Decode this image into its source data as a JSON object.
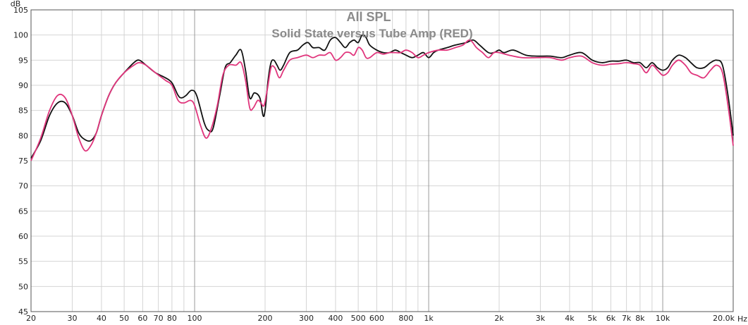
{
  "chart_data": {
    "type": "line",
    "title": "All SPL",
    "subtitle": "Solid State versus Tube Amp (RED)",
    "ylabel": "dB",
    "xunit": "Hz",
    "xscale": "log",
    "xlim": [
      20,
      20000
    ],
    "ylim": [
      45,
      105
    ],
    "grid": true,
    "yticks": [
      {
        "value": 45,
        "label": "45"
      },
      {
        "value": 50,
        "label": "50"
      },
      {
        "value": 55,
        "label": "55"
      },
      {
        "value": 60,
        "label": "60"
      },
      {
        "value": 65,
        "label": "65"
      },
      {
        "value": 70,
        "label": "70"
      },
      {
        "value": 75,
        "label": "75"
      },
      {
        "value": 80,
        "label": "80"
      },
      {
        "value": 85,
        "label": "85"
      },
      {
        "value": 90,
        "label": "90"
      },
      {
        "value": 95,
        "label": "95"
      },
      {
        "value": 100,
        "label": "100"
      },
      {
        "value": 105,
        "label": "105"
      }
    ],
    "xticks": [
      {
        "value": 20,
        "label": "20"
      },
      {
        "value": 30,
        "label": "30"
      },
      {
        "value": 40,
        "label": "40"
      },
      {
        "value": 50,
        "label": "50"
      },
      {
        "value": 60,
        "label": "60"
      },
      {
        "value": 70,
        "label": "70"
      },
      {
        "value": 80,
        "label": "80"
      },
      {
        "value": 90,
        "label": ""
      },
      {
        "value": 100,
        "label": "100"
      },
      {
        "value": 200,
        "label": "200"
      },
      {
        "value": 300,
        "label": "300"
      },
      {
        "value": 400,
        "label": "400"
      },
      {
        "value": 500,
        "label": "500"
      },
      {
        "value": 600,
        "label": "600"
      },
      {
        "value": 700,
        "label": ""
      },
      {
        "value": 800,
        "label": "800"
      },
      {
        "value": 900,
        "label": ""
      },
      {
        "value": 1000,
        "label": "1k"
      },
      {
        "value": 2000,
        "label": "2k"
      },
      {
        "value": 3000,
        "label": "3k"
      },
      {
        "value": 4000,
        "label": "4k"
      },
      {
        "value": 5000,
        "label": "5k"
      },
      {
        "value": 6000,
        "label": "6k"
      },
      {
        "value": 7000,
        "label": "7k"
      },
      {
        "value": 8000,
        "label": "8k"
      },
      {
        "value": 9000,
        "label": ""
      },
      {
        "value": 10000,
        "label": "10k"
      },
      {
        "value": 20000,
        "label": "20.0k"
      }
    ],
    "series": [
      {
        "color": "#111111",
        "points": [
          [
            20,
            75.5
          ],
          [
            22,
            79
          ],
          [
            24,
            84
          ],
          [
            26,
            86.5
          ],
          [
            28,
            86.5
          ],
          [
            30,
            84
          ],
          [
            32,
            80.5
          ],
          [
            34,
            79.2
          ],
          [
            36,
            79
          ],
          [
            38,
            80.5
          ],
          [
            40,
            84
          ],
          [
            43,
            88
          ],
          [
            46,
            90.5
          ],
          [
            50,
            92.5
          ],
          [
            55,
            94.5
          ],
          [
            58,
            95
          ],
          [
            62,
            94
          ],
          [
            68,
            92.5
          ],
          [
            75,
            91.5
          ],
          [
            80,
            90.5
          ],
          [
            85,
            88
          ],
          [
            88,
            87.5
          ],
          [
            92,
            88
          ],
          [
            97,
            89
          ],
          [
            102,
            88
          ],
          [
            110,
            82.5
          ],
          [
            115,
            81
          ],
          [
            120,
            81.5
          ],
          [
            128,
            88
          ],
          [
            135,
            93.5
          ],
          [
            142,
            94.5
          ],
          [
            150,
            96
          ],
          [
            158,
            97
          ],
          [
            165,
            93
          ],
          [
            172,
            87.5
          ],
          [
            180,
            88.5
          ],
          [
            190,
            87.5
          ],
          [
            196,
            84
          ],
          [
            200,
            85
          ],
          [
            206,
            91
          ],
          [
            212,
            94.5
          ],
          [
            218,
            95
          ],
          [
            225,
            94
          ],
          [
            232,
            93
          ],
          [
            240,
            94
          ],
          [
            255,
            96.5
          ],
          [
            275,
            97
          ],
          [
            290,
            98
          ],
          [
            305,
            98.5
          ],
          [
            320,
            97.5
          ],
          [
            340,
            97.5
          ],
          [
            360,
            97
          ],
          [
            380,
            99
          ],
          [
            400,
            99.5
          ],
          [
            420,
            98.5
          ],
          [
            440,
            97.5
          ],
          [
            460,
            98.5
          ],
          [
            480,
            99
          ],
          [
            500,
            98.5
          ],
          [
            520,
            100
          ],
          [
            540,
            99.5
          ],
          [
            560,
            98
          ],
          [
            600,
            97
          ],
          [
            640,
            96.5
          ],
          [
            680,
            96.5
          ],
          [
            720,
            97
          ],
          [
            760,
            96.5
          ],
          [
            800,
            96
          ],
          [
            850,
            95.5
          ],
          [
            900,
            96
          ],
          [
            950,
            96.5
          ],
          [
            1000,
            95.5
          ],
          [
            1050,
            96.5
          ],
          [
            1100,
            97
          ],
          [
            1200,
            97.5
          ],
          [
            1300,
            98
          ],
          [
            1450,
            98.5
          ],
          [
            1550,
            99
          ],
          [
            1650,
            98
          ],
          [
            1800,
            96.5
          ],
          [
            1900,
            96.5
          ],
          [
            2000,
            97
          ],
          [
            2100,
            96.5
          ],
          [
            2300,
            97
          ],
          [
            2600,
            96
          ],
          [
            2900,
            95.8
          ],
          [
            3300,
            95.8
          ],
          [
            3700,
            95.5
          ],
          [
            4000,
            96
          ],
          [
            4500,
            96.5
          ],
          [
            5000,
            95
          ],
          [
            5500,
            94.5
          ],
          [
            6000,
            94.8
          ],
          [
            6500,
            94.8
          ],
          [
            7000,
            95
          ],
          [
            7500,
            94.5
          ],
          [
            8000,
            94.5
          ],
          [
            8500,
            93.5
          ],
          [
            9000,
            94.5
          ],
          [
            9500,
            93.5
          ],
          [
            10000,
            93
          ],
          [
            10500,
            93.5
          ],
          [
            11000,
            95
          ],
          [
            11700,
            96
          ],
          [
            12500,
            95.5
          ],
          [
            13200,
            94.5
          ],
          [
            14000,
            93.5
          ],
          [
            15000,
            93.5
          ],
          [
            16000,
            94.5
          ],
          [
            17000,
            95
          ],
          [
            18000,
            94
          ],
          [
            19000,
            88
          ],
          [
            20000,
            80
          ]
        ]
      },
      {
        "color": "#e0357c",
        "points": [
          [
            20,
            75
          ],
          [
            22,
            79.5
          ],
          [
            24,
            85
          ],
          [
            26,
            88
          ],
          [
            28,
            87.5
          ],
          [
            30,
            84
          ],
          [
            32,
            79.5
          ],
          [
            34,
            77
          ],
          [
            36,
            78
          ],
          [
            38,
            80.5
          ],
          [
            40,
            84
          ],
          [
            43,
            88
          ],
          [
            46,
            90.5
          ],
          [
            50,
            92.5
          ],
          [
            55,
            94
          ],
          [
            58,
            94.5
          ],
          [
            62,
            94
          ],
          [
            68,
            92.5
          ],
          [
            75,
            91
          ],
          [
            80,
            90
          ],
          [
            85,
            87
          ],
          [
            90,
            86.5
          ],
          [
            96,
            87
          ],
          [
            100,
            86
          ],
          [
            106,
            82
          ],
          [
            112,
            79.5
          ],
          [
            118,
            81.5
          ],
          [
            125,
            86
          ],
          [
            132,
            92
          ],
          [
            140,
            94
          ],
          [
            150,
            94
          ],
          [
            158,
            94.5
          ],
          [
            165,
            91
          ],
          [
            172,
            85.5
          ],
          [
            178,
            85.5
          ],
          [
            186,
            87
          ],
          [
            192,
            86.5
          ],
          [
            198,
            86
          ],
          [
            205,
            89.5
          ],
          [
            212,
            93.5
          ],
          [
            220,
            93.5
          ],
          [
            230,
            91.5
          ],
          [
            240,
            93
          ],
          [
            255,
            95
          ],
          [
            275,
            95.5
          ],
          [
            300,
            96
          ],
          [
            320,
            95.5
          ],
          [
            340,
            96
          ],
          [
            360,
            96
          ],
          [
            380,
            96.5
          ],
          [
            400,
            95
          ],
          [
            420,
            95.5
          ],
          [
            440,
            96.5
          ],
          [
            460,
            96.5
          ],
          [
            480,
            96
          ],
          [
            500,
            97.5
          ],
          [
            520,
            97
          ],
          [
            540,
            95.5
          ],
          [
            560,
            95.5
          ],
          [
            600,
            96.5
          ],
          [
            640,
            96.2
          ],
          [
            680,
            96.5
          ],
          [
            720,
            96.5
          ],
          [
            760,
            96.5
          ],
          [
            800,
            97
          ],
          [
            850,
            96.5
          ],
          [
            900,
            95.5
          ],
          [
            950,
            96
          ],
          [
            1000,
            96.5
          ],
          [
            1100,
            97
          ],
          [
            1200,
            97
          ],
          [
            1300,
            97.5
          ],
          [
            1400,
            98
          ],
          [
            1500,
            99
          ],
          [
            1600,
            97.5
          ],
          [
            1700,
            96.5
          ],
          [
            1800,
            95.5
          ],
          [
            1900,
            96.5
          ],
          [
            2000,
            96.5
          ],
          [
            2200,
            96
          ],
          [
            2500,
            95.5
          ],
          [
            2900,
            95.5
          ],
          [
            3300,
            95.5
          ],
          [
            3700,
            95
          ],
          [
            4000,
            95.5
          ],
          [
            4500,
            95.8
          ],
          [
            5000,
            94.5
          ],
          [
            5500,
            94
          ],
          [
            6000,
            94.2
          ],
          [
            6500,
            94.3
          ],
          [
            7000,
            94.5
          ],
          [
            7500,
            94.3
          ],
          [
            8000,
            94
          ],
          [
            8500,
            92.5
          ],
          [
            9000,
            94
          ],
          [
            9500,
            93
          ],
          [
            10000,
            92
          ],
          [
            10500,
            92.5
          ],
          [
            11000,
            94
          ],
          [
            11700,
            95
          ],
          [
            12500,
            94
          ],
          [
            13200,
            92.5
          ],
          [
            14000,
            92
          ],
          [
            15000,
            91.5
          ],
          [
            16000,
            93
          ],
          [
            17000,
            94
          ],
          [
            18000,
            92.5
          ],
          [
            19000,
            86
          ],
          [
            20000,
            78
          ]
        ]
      }
    ]
  }
}
